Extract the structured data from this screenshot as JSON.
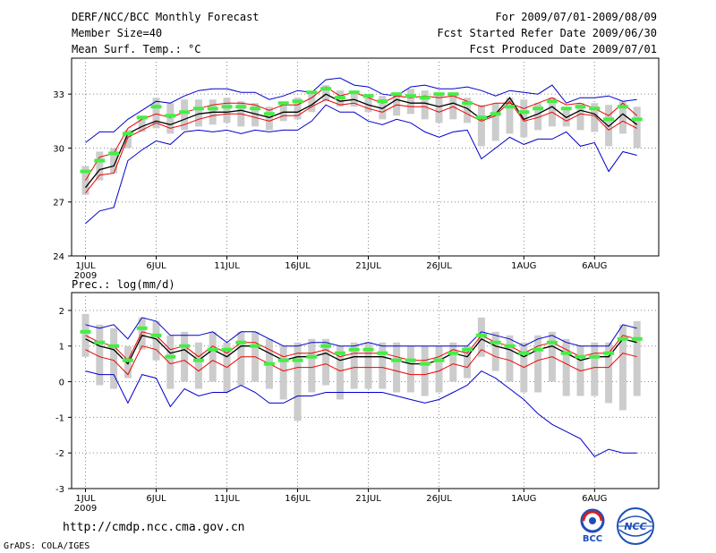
{
  "header": {
    "title": "DERF/NCC/BCC Monthly Forecast",
    "member_size": "Member Size=40",
    "variable": "Mean Surf. Temp.: °C",
    "forecast_period": "For 2009/07/01-2009/08/09",
    "refer_date": "Fcst Started Refer Date 2009/06/30",
    "produced_date": "Fcst Produced Date 2009/07/01"
  },
  "footer": {
    "url": "http://cmdp.ncc.cma.gov.cn",
    "credit": "GrADS: COLA/IGES",
    "logo_bcc": "BCC",
    "logo_ncc": "NCC"
  },
  "colors": {
    "max_min": "#0000cc",
    "spread": "#ee0000",
    "mean": "#000000",
    "observed": "#44ee44",
    "bar": "#cccccc",
    "grid": "#888888"
  },
  "chart_data": [
    {
      "type": "line",
      "title": "Mean Surf. Temp.: °C",
      "xlabel": "",
      "ylabel": "",
      "xtick_labels": [
        "1JUL",
        "6JUL",
        "11JUL",
        "16JUL",
        "21JUL",
        "26JUL",
        "1AUG",
        "6AUG"
      ],
      "xtick_year": "2009",
      "xtick_days": [
        1,
        6,
        11,
        16,
        21,
        26,
        32,
        37
      ],
      "ylim": [
        24,
        35
      ],
      "yticks": [
        24,
        27,
        30,
        33
      ],
      "days": [
        1,
        2,
        3,
        4,
        5,
        6,
        7,
        8,
        9,
        10,
        11,
        12,
        13,
        14,
        15,
        16,
        17,
        18,
        19,
        20,
        21,
        22,
        23,
        24,
        25,
        26,
        27,
        28,
        29,
        30,
        31,
        32,
        33,
        34,
        35,
        36,
        37,
        38,
        39,
        40
      ],
      "series": [
        {
          "name": "max",
          "values": [
            30.3,
            30.9,
            30.9,
            31.6,
            32.1,
            32.6,
            32.5,
            32.9,
            33.2,
            33.3,
            33.3,
            33.1,
            33.1,
            32.7,
            32.9,
            33.2,
            33.1,
            33.8,
            33.9,
            33.5,
            33.4,
            33.0,
            32.9,
            33.4,
            33.5,
            33.3,
            33.3,
            33.4,
            33.2,
            32.9,
            33.2,
            33.1,
            33.0,
            33.5,
            32.5,
            32.8,
            32.8,
            32.9,
            32.6,
            32.7
          ]
        },
        {
          "name": "spread_upper",
          "values": [
            28.2,
            29.5,
            29.7,
            31.1,
            31.6,
            31.9,
            31.7,
            32.0,
            32.2,
            32.4,
            32.5,
            32.5,
            32.4,
            32.1,
            32.4,
            32.4,
            32.8,
            33.4,
            32.9,
            33.1,
            32.8,
            32.5,
            32.9,
            32.8,
            32.9,
            32.8,
            32.9,
            32.6,
            32.3,
            32.5,
            32.5,
            32.2,
            32.5,
            32.8,
            32.4,
            32.5,
            32.2,
            31.8,
            32.5,
            31.8
          ]
        },
        {
          "name": "mean",
          "values": [
            27.8,
            28.8,
            29.0,
            30.8,
            31.2,
            31.5,
            31.3,
            31.6,
            31.9,
            32.0,
            32.0,
            32.1,
            31.9,
            31.7,
            32.0,
            32.0,
            32.4,
            33.0,
            32.6,
            32.7,
            32.4,
            32.2,
            32.7,
            32.5,
            32.5,
            32.3,
            32.5,
            32.2,
            31.6,
            31.9,
            32.8,
            31.6,
            31.9,
            32.3,
            31.7,
            32.1,
            31.9,
            31.2,
            31.9,
            31.3
          ]
        },
        {
          "name": "spread_lower",
          "values": [
            27.5,
            28.5,
            28.6,
            30.6,
            31.0,
            31.4,
            31.1,
            31.3,
            31.6,
            31.8,
            31.9,
            31.9,
            31.7,
            31.5,
            31.8,
            31.8,
            32.3,
            32.7,
            32.4,
            32.5,
            32.2,
            32.0,
            32.4,
            32.3,
            32.3,
            32.0,
            32.3,
            31.9,
            31.5,
            31.8,
            32.6,
            31.5,
            31.7,
            32.0,
            31.5,
            31.9,
            31.8,
            31.0,
            31.5,
            31.1
          ]
        },
        {
          "name": "min",
          "values": [
            25.8,
            26.5,
            26.7,
            29.3,
            29.9,
            30.4,
            30.2,
            30.9,
            31.0,
            30.9,
            31.0,
            30.8,
            31.0,
            30.9,
            31.0,
            31.0,
            31.5,
            32.4,
            32.0,
            32.0,
            31.5,
            31.3,
            31.6,
            31.4,
            30.9,
            30.6,
            30.9,
            31.0,
            29.4,
            30.0,
            30.6,
            30.2,
            30.5,
            30.5,
            30.9,
            30.1,
            30.3,
            28.7,
            29.8,
            29.6
          ]
        },
        {
          "name": "observed",
          "values": [
            28.7,
            29.3,
            29.7,
            30.8,
            31.7,
            32.3,
            31.8,
            32.0,
            32.2,
            32.2,
            32.3,
            32.3,
            32.2,
            31.9,
            32.5,
            32.6,
            33.1,
            33.3,
            32.8,
            33.1,
            32.9,
            32.6,
            33.0,
            32.9,
            32.8,
            33.0,
            33.0,
            32.5,
            31.7,
            31.9,
            32.3,
            32.0,
            32.2,
            32.6,
            32.2,
            32.3,
            32.2,
            31.6,
            32.3,
            31.6
          ]
        },
        {
          "name": "bar_top",
          "values": [
            29.0,
            29.8,
            30.0,
            31.0,
            31.8,
            32.8,
            32.5,
            32.7,
            32.7,
            32.7,
            32.8,
            32.6,
            32.5,
            32.3,
            32.5,
            32.8,
            33.0,
            33.5,
            33.2,
            33.2,
            33.0,
            32.9,
            33.0,
            33.3,
            33.2,
            33.0,
            33.0,
            32.8,
            32.4,
            32.5,
            32.8,
            32.7,
            32.5,
            32.8,
            32.3,
            32.5,
            32.5,
            32.4,
            32.6,
            32.3
          ]
        },
        {
          "name": "bar_bottom",
          "values": [
            27.4,
            28.2,
            28.6,
            30.0,
            30.9,
            31.1,
            30.8,
            31.0,
            31.2,
            31.3,
            31.4,
            31.2,
            31.2,
            31.0,
            31.5,
            31.6,
            32.0,
            32.6,
            32.3,
            32.3,
            32.0,
            31.6,
            31.8,
            31.9,
            31.6,
            31.4,
            31.6,
            31.4,
            30.1,
            30.4,
            30.8,
            30.6,
            31.0,
            31.2,
            31.2,
            31.0,
            30.9,
            30.1,
            30.8,
            30.0
          ]
        }
      ]
    },
    {
      "type": "line",
      "title": "Prec.: log(mm/d)",
      "xlabel": "",
      "ylabel": "",
      "xtick_labels": [
        "1JUL",
        "6JUL",
        "11JUL",
        "16JUL",
        "21JUL",
        "26JUL",
        "1AUG",
        "6AUG"
      ],
      "xtick_year": "2009",
      "xtick_days": [
        1,
        6,
        11,
        16,
        21,
        26,
        32,
        37
      ],
      "ylim": [
        -3,
        2.5
      ],
      "yticks": [
        -3,
        -2,
        -1,
        0,
        1,
        2
      ],
      "days": [
        1,
        2,
        3,
        4,
        5,
        6,
        7,
        8,
        9,
        10,
        11,
        12,
        13,
        14,
        15,
        16,
        17,
        18,
        19,
        20,
        21,
        22,
        23,
        24,
        25,
        26,
        27,
        28,
        29,
        30,
        31,
        32,
        33,
        34,
        35,
        36,
        37,
        38,
        39,
        40
      ],
      "series": [
        {
          "name": "max",
          "values": [
            1.6,
            1.5,
            1.6,
            1.2,
            1.8,
            1.7,
            1.3,
            1.3,
            1.3,
            1.4,
            1.1,
            1.4,
            1.4,
            1.2,
            1.0,
            1.0,
            1.1,
            1.1,
            1.0,
            1.0,
            1.1,
            1.0,
            1.0,
            1.0,
            1.0,
            1.0,
            1.0,
            1.0,
            1.4,
            1.3,
            1.2,
            1.0,
            1.2,
            1.3,
            1.1,
            1.0,
            1.0,
            1.0,
            1.6,
            1.5
          ]
        },
        {
          "name": "spread_upper",
          "values": [
            1.3,
            1.1,
            1.0,
            0.6,
            1.4,
            1.3,
            0.9,
            1.0,
            0.7,
            1.0,
            0.8,
            1.1,
            1.1,
            0.9,
            0.7,
            0.8,
            0.8,
            0.9,
            0.7,
            0.8,
            0.8,
            0.8,
            0.7,
            0.6,
            0.6,
            0.7,
            0.9,
            0.8,
            1.3,
            1.1,
            1.0,
            0.8,
            1.0,
            1.1,
            0.9,
            0.7,
            0.8,
            0.8,
            1.3,
            1.2
          ]
        },
        {
          "name": "mean",
          "values": [
            1.2,
            1.0,
            0.9,
            0.5,
            1.3,
            1.2,
            0.8,
            0.9,
            0.6,
            0.9,
            0.7,
            1.0,
            1.0,
            0.8,
            0.6,
            0.7,
            0.7,
            0.8,
            0.6,
            0.7,
            0.7,
            0.7,
            0.6,
            0.5,
            0.5,
            0.6,
            0.8,
            0.7,
            1.2,
            1.0,
            0.9,
            0.7,
            0.9,
            1.0,
            0.8,
            0.6,
            0.7,
            0.7,
            1.2,
            1.1
          ]
        },
        {
          "name": "spread_lower",
          "values": [
            0.9,
            0.7,
            0.6,
            0.2,
            1.0,
            0.9,
            0.5,
            0.6,
            0.3,
            0.6,
            0.4,
            0.7,
            0.7,
            0.5,
            0.3,
            0.4,
            0.4,
            0.5,
            0.3,
            0.4,
            0.4,
            0.4,
            0.3,
            0.2,
            0.2,
            0.3,
            0.5,
            0.4,
            0.9,
            0.7,
            0.6,
            0.4,
            0.6,
            0.7,
            0.5,
            0.3,
            0.4,
            0.4,
            0.8,
            0.7
          ]
        },
        {
          "name": "min",
          "values": [
            0.3,
            0.2,
            0.2,
            -0.6,
            0.2,
            0.1,
            -0.7,
            -0.2,
            -0.4,
            -0.3,
            -0.3,
            -0.1,
            -0.3,
            -0.6,
            -0.6,
            -0.4,
            -0.4,
            -0.3,
            -0.3,
            -0.3,
            -0.3,
            -0.3,
            -0.4,
            -0.5,
            -0.6,
            -0.5,
            -0.3,
            -0.1,
            0.3,
            0.1,
            -0.2,
            -0.5,
            -0.9,
            -1.2,
            -1.4,
            -1.6,
            -2.1,
            -1.9,
            -2.0,
            -2.0
          ]
        },
        {
          "name": "observed",
          "values": [
            1.4,
            1.1,
            1.0,
            0.6,
            1.5,
            1.3,
            0.7,
            1.0,
            0.6,
            0.9,
            0.9,
            1.1,
            1.0,
            0.5,
            0.6,
            0.6,
            0.7,
            1.0,
            0.8,
            0.9,
            0.9,
            0.8,
            0.6,
            0.6,
            0.5,
            0.6,
            0.8,
            0.9,
            1.3,
            1.1,
            1.0,
            0.8,
            0.9,
            1.1,
            0.8,
            0.7,
            0.7,
            0.8,
            1.2,
            1.2
          ]
        },
        {
          "name": "bar_top",
          "values": [
            1.9,
            1.6,
            1.5,
            1.0,
            1.8,
            1.7,
            1.3,
            1.4,
            1.1,
            1.4,
            1.1,
            1.4,
            1.4,
            1.2,
            1.0,
            1.1,
            1.2,
            1.2,
            1.0,
            1.1,
            1.1,
            1.1,
            1.1,
            1.0,
            1.0,
            1.0,
            1.1,
            1.0,
            1.8,
            1.4,
            1.3,
            1.1,
            1.3,
            1.4,
            1.2,
            1.0,
            1.1,
            1.1,
            1.6,
            1.7
          ]
        },
        {
          "name": "bar_bottom",
          "values": [
            0.7,
            -0.1,
            -0.2,
            0.1,
            0.9,
            0.6,
            -0.2,
            0.0,
            -0.2,
            0.0,
            -0.3,
            -0.1,
            0.0,
            -0.2,
            -0.5,
            -1.1,
            -0.3,
            -0.1,
            -0.5,
            -0.2,
            -0.2,
            -0.2,
            -0.3,
            -0.3,
            -0.4,
            -0.3,
            0.0,
            0.1,
            0.7,
            0.3,
            0.0,
            -0.3,
            -0.3,
            0.0,
            -0.4,
            -0.4,
            -0.4,
            -0.6,
            -0.8,
            -0.4
          ]
        }
      ]
    }
  ]
}
